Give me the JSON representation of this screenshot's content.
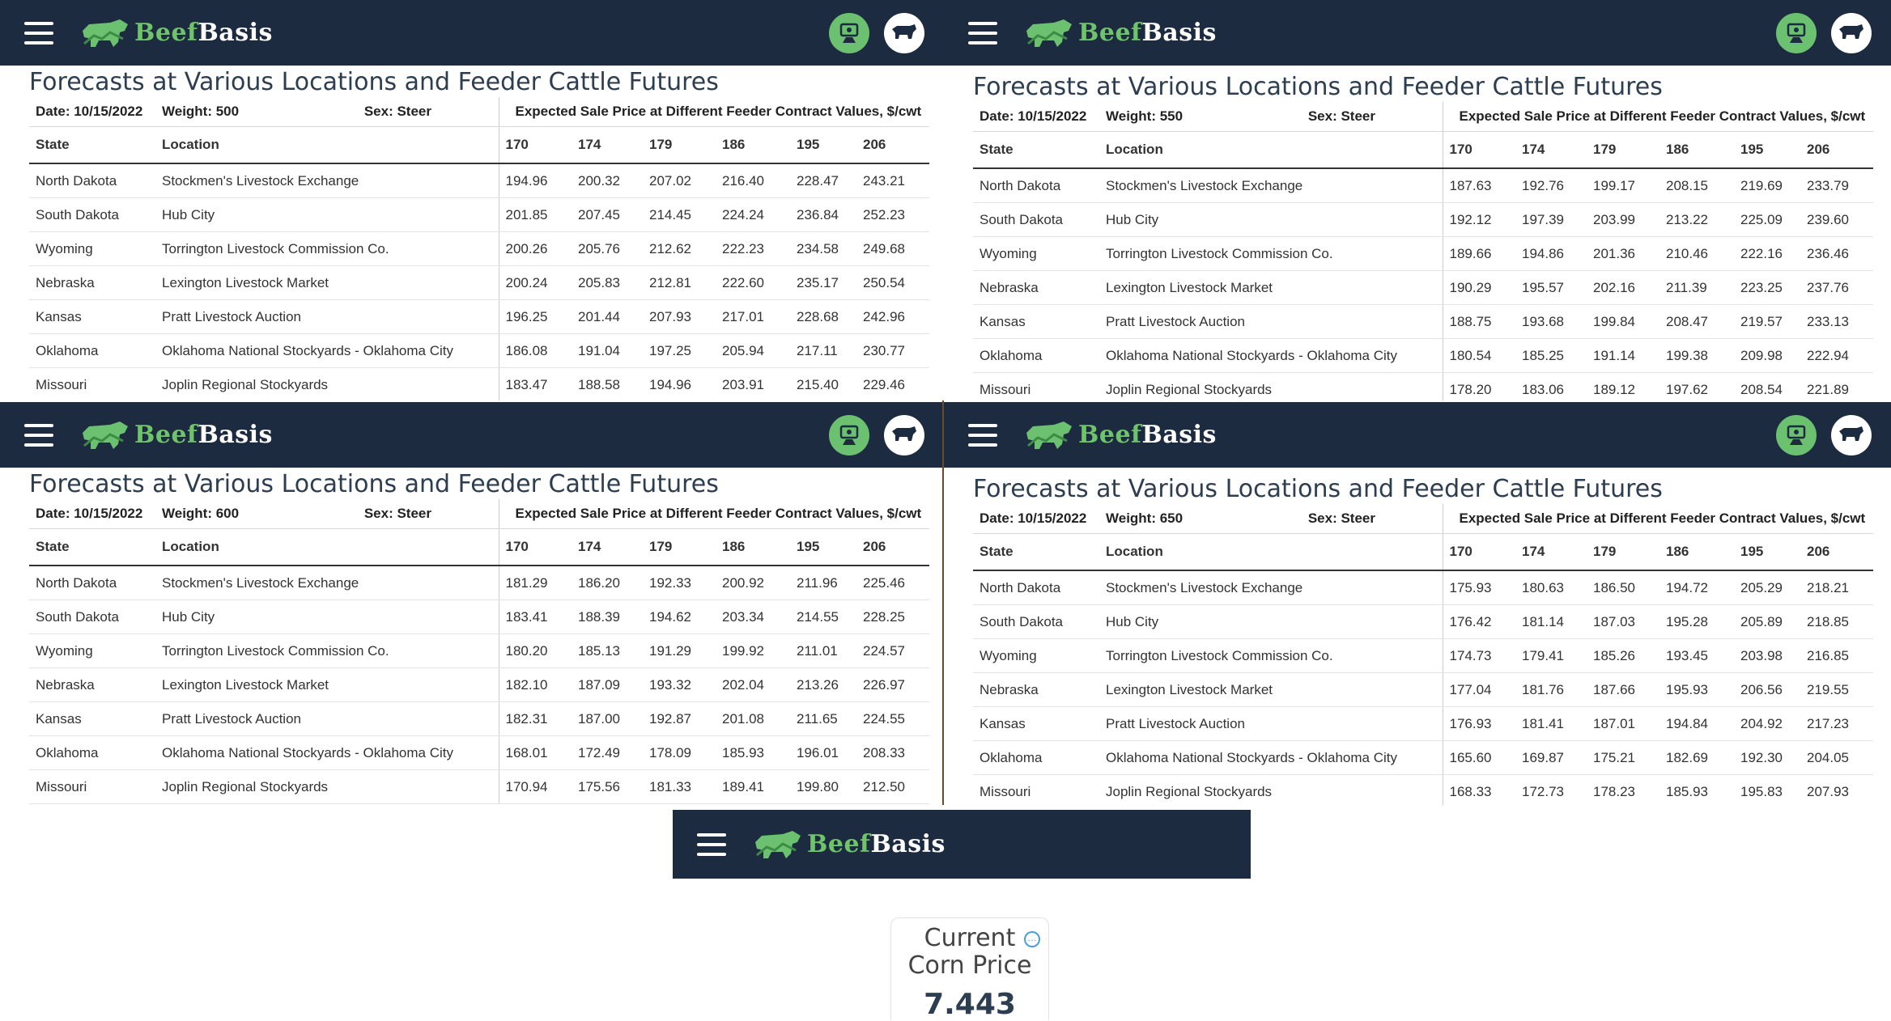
{
  "app": {
    "brand_part1": "Beef",
    "brand_part2": "Basis"
  },
  "panels": [
    {
      "title": "Forecasts at Various Locations and Feeder Cattle Futures",
      "date": "Date: 10/15/2022",
      "weight": "Weight: 500",
      "sex": "Sex: Steer",
      "expected_label": "Expected Sale Price at Different Feeder Contract Values, $/cwt",
      "headers": [
        "State",
        "Location",
        "170",
        "174",
        "179",
        "186",
        "195",
        "206"
      ],
      "rows": [
        [
          "North Dakota",
          "Stockmen's Livestock Exchange",
          "194.96",
          "200.32",
          "207.02",
          "216.40",
          "228.47",
          "243.21"
        ],
        [
          "South Dakota",
          "Hub City",
          "201.85",
          "207.45",
          "214.45",
          "224.24",
          "236.84",
          "252.23"
        ],
        [
          "Wyoming",
          "Torrington Livestock Commission Co.",
          "200.26",
          "205.76",
          "212.62",
          "222.23",
          "234.58",
          "249.68"
        ],
        [
          "Nebraska",
          "Lexington Livestock Market",
          "200.24",
          "205.83",
          "212.81",
          "222.60",
          "235.17",
          "250.54"
        ],
        [
          "Kansas",
          "Pratt Livestock Auction",
          "196.25",
          "201.44",
          "207.93",
          "217.01",
          "228.68",
          "242.96"
        ],
        [
          "Oklahoma",
          "Oklahoma National Stockyards - Oklahoma City",
          "186.08",
          "191.04",
          "197.25",
          "205.94",
          "217.11",
          "230.77"
        ],
        [
          "Missouri",
          "Joplin Regional Stockyards",
          "183.47",
          "188.58",
          "194.96",
          "203.91",
          "215.40",
          "229.46"
        ]
      ]
    },
    {
      "title": "Forecasts at Various Locations and Feeder Cattle Futures",
      "date": "Date: 10/15/2022",
      "weight": "Weight: 550",
      "sex": "Sex: Steer",
      "expected_label": "Expected Sale Price at Different Feeder Contract Values, $/cwt",
      "headers": [
        "State",
        "Location",
        "170",
        "174",
        "179",
        "186",
        "195",
        "206"
      ],
      "rows": [
        [
          "North Dakota",
          "Stockmen's Livestock Exchange",
          "187.63",
          "192.76",
          "199.17",
          "208.15",
          "219.69",
          "233.79"
        ],
        [
          "South Dakota",
          "Hub City",
          "192.12",
          "197.39",
          "203.99",
          "213.22",
          "225.09",
          "239.60"
        ],
        [
          "Wyoming",
          "Torrington Livestock Commission Co.",
          "189.66",
          "194.86",
          "201.36",
          "210.46",
          "222.16",
          "236.46"
        ],
        [
          "Nebraska",
          "Lexington Livestock Market",
          "190.29",
          "195.57",
          "202.16",
          "211.39",
          "223.25",
          "237.76"
        ],
        [
          "Kansas",
          "Pratt Livestock Auction",
          "188.75",
          "193.68",
          "199.84",
          "208.47",
          "219.57",
          "233.13"
        ],
        [
          "Oklahoma",
          "Oklahoma National Stockyards - Oklahoma City",
          "180.54",
          "185.25",
          "191.14",
          "199.38",
          "209.98",
          "222.94"
        ],
        [
          "Missouri",
          "Joplin Regional Stockyards",
          "178.20",
          "183.06",
          "189.12",
          "197.62",
          "208.54",
          "221.89"
        ]
      ]
    },
    {
      "title": "Forecasts at Various Locations and Feeder Cattle Futures",
      "date": "Date: 10/15/2022",
      "weight": "Weight: 600",
      "sex": "Sex: Steer",
      "expected_label": "Expected Sale Price at Different Feeder Contract Values, $/cwt",
      "headers": [
        "State",
        "Location",
        "170",
        "174",
        "179",
        "186",
        "195",
        "206"
      ],
      "rows": [
        [
          "North Dakota",
          "Stockmen's Livestock Exchange",
          "181.29",
          "186.20",
          "192.33",
          "200.92",
          "211.96",
          "225.46"
        ],
        [
          "South Dakota",
          "Hub City",
          "183.41",
          "188.39",
          "194.62",
          "203.34",
          "214.55",
          "228.25"
        ],
        [
          "Wyoming",
          "Torrington Livestock Commission Co.",
          "180.20",
          "185.13",
          "191.29",
          "199.92",
          "211.01",
          "224.57"
        ],
        [
          "Nebraska",
          "Lexington Livestock Market",
          "182.10",
          "187.09",
          "193.32",
          "202.04",
          "213.26",
          "226.97"
        ],
        [
          "Kansas",
          "Pratt Livestock Auction",
          "182.31",
          "187.00",
          "192.87",
          "201.08",
          "211.65",
          "224.55"
        ],
        [
          "Oklahoma",
          "Oklahoma National Stockyards - Oklahoma City",
          "168.01",
          "172.49",
          "178.09",
          "185.93",
          "196.01",
          "208.33"
        ],
        [
          "Missouri",
          "Joplin Regional Stockyards",
          "170.94",
          "175.56",
          "181.33",
          "189.41",
          "199.80",
          "212.50"
        ]
      ]
    },
    {
      "title": "Forecasts at Various Locations and Feeder Cattle Futures",
      "date": "Date: 10/15/2022",
      "weight": "Weight: 650",
      "sex": "Sex: Steer",
      "expected_label": "Expected Sale Price at Different Feeder Contract Values, $/cwt",
      "headers": [
        "State",
        "Location",
        "170",
        "174",
        "179",
        "186",
        "195",
        "206"
      ],
      "rows": [
        [
          "North Dakota",
          "Stockmen's Livestock Exchange",
          "175.93",
          "180.63",
          "186.50",
          "194.72",
          "205.29",
          "218.21"
        ],
        [
          "South Dakota",
          "Hub City",
          "176.42",
          "181.14",
          "187.03",
          "195.28",
          "205.89",
          "218.85"
        ],
        [
          "Wyoming",
          "Torrington Livestock Commission Co.",
          "174.73",
          "179.41",
          "185.26",
          "193.45",
          "203.98",
          "216.85"
        ],
        [
          "Nebraska",
          "Lexington Livestock Market",
          "177.04",
          "181.76",
          "187.66",
          "195.93",
          "206.56",
          "219.55"
        ],
        [
          "Kansas",
          "Pratt Livestock Auction",
          "176.93",
          "181.41",
          "187.01",
          "194.84",
          "204.92",
          "217.23"
        ],
        [
          "Oklahoma",
          "Oklahoma National Stockyards - Oklahoma City",
          "165.60",
          "169.87",
          "175.21",
          "182.69",
          "192.30",
          "204.05"
        ],
        [
          "Missouri",
          "Joplin Regional Stockyards",
          "168.33",
          "172.73",
          "178.23",
          "185.93",
          "195.83",
          "207.93"
        ]
      ]
    }
  ],
  "corn": {
    "title_line1": "Current",
    "title_line2": "Corn Price",
    "value": "7.443"
  },
  "colors": {
    "navbar": "#1c2b40",
    "brand_green": "#6bc16f"
  }
}
